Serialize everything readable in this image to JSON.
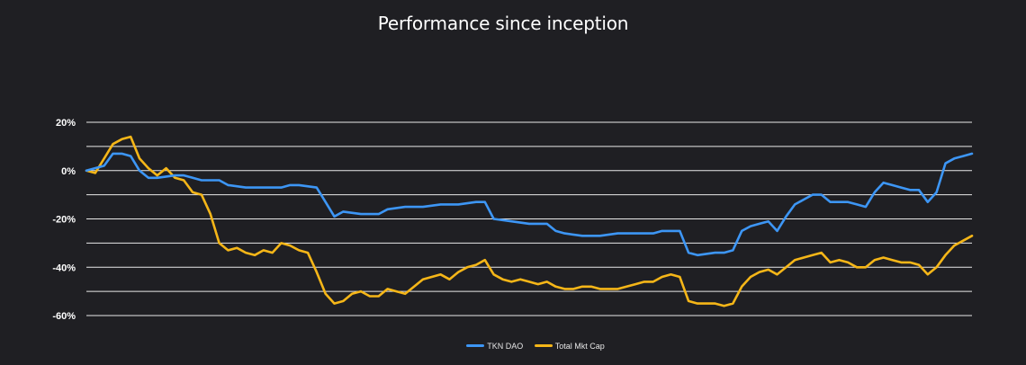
{
  "page": {
    "title": "Performance since inception"
  },
  "chart_data": {
    "type": "line",
    "title": "Performance since inception",
    "ylim": [
      -60,
      20
    ],
    "y_ticks": [
      "20%",
      "0%",
      "-20%",
      "-40%",
      "-60%"
    ],
    "x_range": [
      0,
      100
    ],
    "grid": true,
    "legend_position": "bottom-center",
    "background": "#1f1f23",
    "series": [
      {
        "name": "TKN DAO",
        "color": "#3d96f5",
        "points": [
          [
            0,
            0
          ],
          [
            2,
            2
          ],
          [
            3,
            7
          ],
          [
            4,
            7
          ],
          [
            5,
            6
          ],
          [
            6,
            0
          ],
          [
            7,
            -3
          ],
          [
            8,
            -3
          ],
          [
            10,
            -2
          ],
          [
            11,
            -2
          ],
          [
            12,
            -3
          ],
          [
            13,
            -4
          ],
          [
            14,
            -4
          ],
          [
            15,
            -4
          ],
          [
            16,
            -6
          ],
          [
            18,
            -7
          ],
          [
            20,
            -7
          ],
          [
            22,
            -7
          ],
          [
            23,
            -6
          ],
          [
            24,
            -6
          ],
          [
            26,
            -7
          ],
          [
            27,
            -13
          ],
          [
            28,
            -19
          ],
          [
            29,
            -17
          ],
          [
            31,
            -18
          ],
          [
            33,
            -18
          ],
          [
            34,
            -16
          ],
          [
            36,
            -15
          ],
          [
            38,
            -15
          ],
          [
            40,
            -14
          ],
          [
            42,
            -14
          ],
          [
            44,
            -13
          ],
          [
            45,
            -13
          ],
          [
            46,
            -20
          ],
          [
            48,
            -21
          ],
          [
            50,
            -22
          ],
          [
            52,
            -22
          ],
          [
            53,
            -25
          ],
          [
            54,
            -26
          ],
          [
            56,
            -27
          ],
          [
            58,
            -27
          ],
          [
            60,
            -26
          ],
          [
            62,
            -26
          ],
          [
            64,
            -26
          ],
          [
            65,
            -25
          ],
          [
            66,
            -25
          ],
          [
            67,
            -25
          ],
          [
            68,
            -34
          ],
          [
            69,
            -35
          ],
          [
            71,
            -34
          ],
          [
            72,
            -34
          ],
          [
            73,
            -33
          ],
          [
            74,
            -25
          ],
          [
            75,
            -23
          ],
          [
            76,
            -22
          ],
          [
            77,
            -21
          ],
          [
            78,
            -25
          ],
          [
            79,
            -19
          ],
          [
            80,
            -14
          ],
          [
            81,
            -12
          ],
          [
            82,
            -10
          ],
          [
            83,
            -10
          ],
          [
            84,
            -13
          ],
          [
            85,
            -13
          ],
          [
            86,
            -13
          ],
          [
            87,
            -14
          ],
          [
            88,
            -15
          ],
          [
            89,
            -9
          ],
          [
            90,
            -5
          ],
          [
            91,
            -6
          ],
          [
            92,
            -7
          ],
          [
            93,
            -8
          ],
          [
            94,
            -8
          ],
          [
            95,
            -13
          ],
          [
            96,
            -9
          ],
          [
            97,
            3
          ],
          [
            98,
            5
          ],
          [
            99,
            6
          ],
          [
            100,
            7
          ]
        ]
      },
      {
        "name": "Total Mkt Cap",
        "color": "#f5b618",
        "points": [
          [
            0,
            0
          ],
          [
            1,
            -1
          ],
          [
            2,
            5
          ],
          [
            3,
            11
          ],
          [
            4,
            13
          ],
          [
            5,
            14
          ],
          [
            6,
            5
          ],
          [
            7,
            1
          ],
          [
            8,
            -2
          ],
          [
            9,
            1
          ],
          [
            10,
            -3
          ],
          [
            11,
            -4
          ],
          [
            12,
            -9
          ],
          [
            13,
            -10
          ],
          [
            14,
            -18
          ],
          [
            15,
            -30
          ],
          [
            16,
            -33
          ],
          [
            17,
            -32
          ],
          [
            18,
            -34
          ],
          [
            19,
            -35
          ],
          [
            20,
            -33
          ],
          [
            21,
            -34
          ],
          [
            22,
            -30
          ],
          [
            23,
            -31
          ],
          [
            24,
            -33
          ],
          [
            25,
            -34
          ],
          [
            26,
            -42
          ],
          [
            27,
            -51
          ],
          [
            28,
            -55
          ],
          [
            29,
            -54
          ],
          [
            30,
            -51
          ],
          [
            31,
            -50
          ],
          [
            32,
            -52
          ],
          [
            33,
            -52
          ],
          [
            34,
            -49
          ],
          [
            35,
            -50
          ],
          [
            36,
            -51
          ],
          [
            37,
            -48
          ],
          [
            38,
            -45
          ],
          [
            39,
            -44
          ],
          [
            40,
            -43
          ],
          [
            41,
            -45
          ],
          [
            42,
            -42
          ],
          [
            43,
            -40
          ],
          [
            44,
            -39
          ],
          [
            45,
            -37
          ],
          [
            46,
            -43
          ],
          [
            47,
            -45
          ],
          [
            48,
            -46
          ],
          [
            49,
            -45
          ],
          [
            50,
            -46
          ],
          [
            51,
            -47
          ],
          [
            52,
            -46
          ],
          [
            53,
            -48
          ],
          [
            54,
            -49
          ],
          [
            55,
            -49
          ],
          [
            56,
            -48
          ],
          [
            57,
            -48
          ],
          [
            58,
            -49
          ],
          [
            59,
            -49
          ],
          [
            60,
            -49
          ],
          [
            61,
            -48
          ],
          [
            62,
            -47
          ],
          [
            63,
            -46
          ],
          [
            64,
            -46
          ],
          [
            65,
            -44
          ],
          [
            66,
            -43
          ],
          [
            67,
            -44
          ],
          [
            68,
            -54
          ],
          [
            69,
            -55
          ],
          [
            70,
            -55
          ],
          [
            71,
            -55
          ],
          [
            72,
            -56
          ],
          [
            73,
            -55
          ],
          [
            74,
            -48
          ],
          [
            75,
            -44
          ],
          [
            76,
            -42
          ],
          [
            77,
            -41
          ],
          [
            78,
            -43
          ],
          [
            79,
            -40
          ],
          [
            80,
            -37
          ],
          [
            81,
            -36
          ],
          [
            82,
            -35
          ],
          [
            83,
            -34
          ],
          [
            84,
            -38
          ],
          [
            85,
            -37
          ],
          [
            86,
            -38
          ],
          [
            87,
            -40
          ],
          [
            88,
            -40
          ],
          [
            89,
            -37
          ],
          [
            90,
            -36
          ],
          [
            91,
            -37
          ],
          [
            92,
            -38
          ],
          [
            93,
            -38
          ],
          [
            94,
            -39
          ],
          [
            95,
            -43
          ],
          [
            96,
            -40
          ],
          [
            97,
            -35
          ],
          [
            98,
            -31
          ],
          [
            99,
            -29
          ],
          [
            100,
            -27
          ]
        ]
      }
    ]
  }
}
